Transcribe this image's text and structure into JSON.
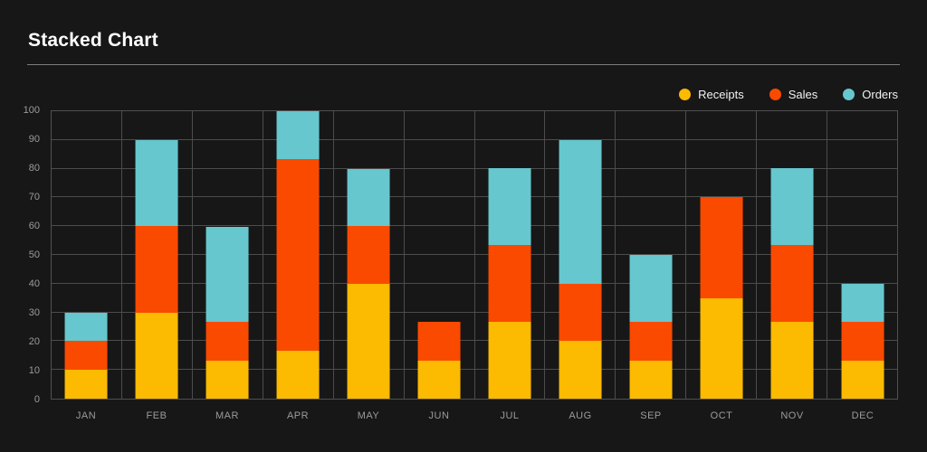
{
  "header": {
    "title": "Stacked Chart"
  },
  "colors": {
    "background": "#171717",
    "receipts": "#fcba00",
    "sales": "#fa4a00",
    "orders": "#66c7ce",
    "gridline": "#4c4c4c",
    "axis_label": "#9b9b9b",
    "title": "#ffffff"
  },
  "chart_data": {
    "type": "bar",
    "stacked": true,
    "title": "Stacked Chart",
    "xlabel": "",
    "ylabel": "",
    "grid": true,
    "legend_position": "top-right",
    "ylim": [
      0,
      100
    ],
    "y_ticks": [
      0,
      10,
      20,
      30,
      40,
      50,
      60,
      70,
      80,
      90,
      100
    ],
    "categories": [
      "JAN",
      "FEB",
      "MAR",
      "APR",
      "MAY",
      "JUN",
      "JUL",
      "AUG",
      "SEP",
      "OCT",
      "NOV",
      "DEC"
    ],
    "series": [
      {
        "name": "Receipts",
        "color": "#fcba00",
        "values": [
          10,
          30,
          13.3,
          16.7,
          40,
          13.3,
          26.7,
          20,
          13.3,
          35,
          26.7,
          13.3
        ]
      },
      {
        "name": "Sales",
        "color": "#fa4a00",
        "values": [
          10,
          30,
          13.3,
          66.7,
          20,
          13.3,
          26.7,
          20,
          13.3,
          35,
          26.7,
          13.3
        ]
      },
      {
        "name": "Orders",
        "color": "#66c7ce",
        "values": [
          10,
          30,
          33.3,
          16.7,
          20,
          0,
          26.7,
          50,
          23.3,
          0,
          26.7,
          13.3
        ]
      }
    ],
    "totals": [
      30,
      90,
      60,
      100,
      80,
      26.7,
      80,
      90,
      50,
      70,
      80,
      40
    ]
  }
}
